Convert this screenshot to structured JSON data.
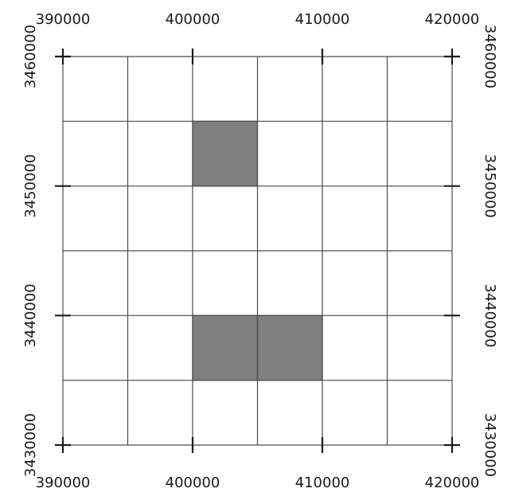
{
  "chart_data": {
    "type": "heatmap",
    "x_ticks": [
      "390000",
      "400000",
      "410000",
      "420000"
    ],
    "y_ticks": [
      "3460000",
      "3450000",
      "3440000",
      "3430000"
    ],
    "x_tick_values": [
      390000,
      400000,
      410000,
      420000
    ],
    "y_tick_values": [
      3460000,
      3450000,
      3440000,
      3430000
    ],
    "xlim": [
      390000,
      420000
    ],
    "ylim": [
      3430000,
      3460000
    ],
    "cell_size": 5000,
    "grid": true,
    "fill_color": "#808080",
    "line_color": "#4a4a4a",
    "highlighted_cells": [
      {
        "x": [
          400000,
          405000
        ],
        "y": [
          3450000,
          3455000
        ]
      },
      {
        "x": [
          400000,
          405000
        ],
        "y": [
          3435000,
          3440000
        ]
      },
      {
        "x": [
          405000,
          410000
        ],
        "y": [
          3435000,
          3440000
        ]
      }
    ]
  }
}
